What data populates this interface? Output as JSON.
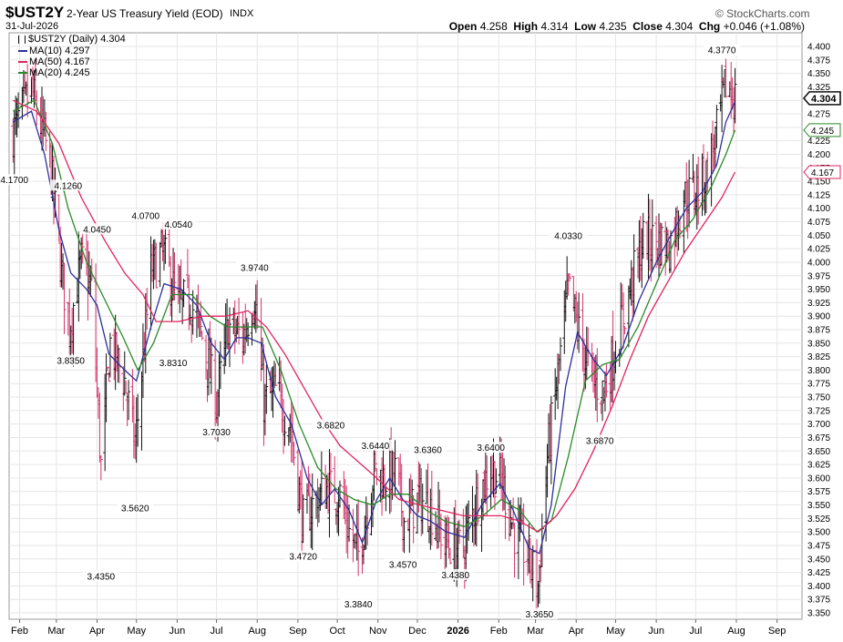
{
  "header": {
    "symbol": "$UST2Y",
    "description": "2-Year US Treasury Yield (EOD)",
    "exchange": "INDX",
    "date": "31-Jul-2026",
    "source": "© StockCharts.com",
    "open_label": "Open",
    "open": "4.258",
    "high_label": "High",
    "high": "4.314",
    "low_label": "Low",
    "low": "4.235",
    "close_label": "Close",
    "close": "4.304",
    "chg_label": "Chg",
    "chg": "+0.046 (+1.08%)"
  },
  "legend": {
    "price": "$UST2Y (Daily) 4.304",
    "ma10": "MA(10) 4.297",
    "ma50": "MA(50) 4.167",
    "ma20": "MA(20) 4.245"
  },
  "colors": {
    "up_bar": "#111111",
    "down_bar": "#d6336c",
    "ma10": "#2b2f9b",
    "ma50": "#e0245e",
    "ma20": "#2a8a2a",
    "grid": "#e6e6e6",
    "highlight": "#111111"
  },
  "chart_data": {
    "type": "line",
    "style": "ohlc-bars",
    "grid": true,
    "ylim": [
      3.35,
      4.4
    ],
    "y_ticks": [
      "3.350",
      "3.375",
      "3.400",
      "3.425",
      "3.450",
      "3.475",
      "3.500",
      "3.525",
      "3.550",
      "3.575",
      "3.600",
      "3.625",
      "3.650",
      "3.675",
      "3.700",
      "3.725",
      "3.750",
      "3.775",
      "3.800",
      "3.825",
      "3.850",
      "3.875",
      "3.900",
      "3.925",
      "3.950",
      "3.975",
      "4.000",
      "4.025",
      "4.050",
      "4.075",
      "4.100",
      "4.125",
      "4.150",
      "4.175",
      "4.200",
      "4.225",
      "4.250",
      "4.275",
      "4.300",
      "4.325",
      "4.350",
      "4.375",
      "4.400"
    ],
    "x_ticks": [
      {
        "label": "Feb",
        "date": "2025-02-01"
      },
      {
        "label": "Mar",
        "date": "2025-03-01"
      },
      {
        "label": "Apr",
        "date": "2025-04-01"
      },
      {
        "label": "May",
        "date": "2025-05-01"
      },
      {
        "label": "Jun",
        "date": "2025-06-01"
      },
      {
        "label": "Jul",
        "date": "2025-07-01"
      },
      {
        "label": "Aug",
        "date": "2025-08-01"
      },
      {
        "label": "Sep",
        "date": "2025-09-01"
      },
      {
        "label": "Oct",
        "date": "2025-10-01"
      },
      {
        "label": "Nov",
        "date": "2025-11-01"
      },
      {
        "label": "Dec",
        "date": "2025-12-01"
      },
      {
        "label": "2026",
        "date": "2026-01-01",
        "bold": true
      },
      {
        "label": "Feb",
        "date": "2026-02-01"
      },
      {
        "label": "Mar",
        "date": "2026-03-01"
      },
      {
        "label": "Apr",
        "date": "2026-04-01"
      },
      {
        "label": "May",
        "date": "2026-05-01"
      },
      {
        "label": "Jun",
        "date": "2026-06-01"
      },
      {
        "label": "Jul",
        "date": "2026-07-01"
      },
      {
        "label": "Aug",
        "date": "2026-08-01"
      },
      {
        "label": "Sep",
        "date": "2026-09-01"
      }
    ],
    "x_range": [
      "2025-01-24",
      "2026-09-20"
    ],
    "last_date": "2026-07-31",
    "series": [
      {
        "name": "$UST2Y (Daily)",
        "points": [
          [
            "2025-01-27",
            4.24
          ],
          [
            "2025-02-10",
            4.32
          ],
          [
            "2025-02-24",
            4.19
          ],
          [
            "2025-03-05",
            3.98
          ],
          [
            "2025-03-11",
            3.88
          ],
          [
            "2025-03-20",
            4.0
          ],
          [
            "2025-03-28",
            3.95
          ],
          [
            "2025-04-04",
            3.62
          ],
          [
            "2025-04-11",
            3.85
          ],
          [
            "2025-04-22",
            3.78
          ],
          [
            "2025-04-30",
            3.66
          ],
          [
            "2025-05-12",
            3.98
          ],
          [
            "2025-05-21",
            4.02
          ],
          [
            "2025-06-02",
            3.92
          ],
          [
            "2025-06-11",
            3.93
          ],
          [
            "2025-06-20",
            3.86
          ],
          [
            "2025-07-01",
            3.74
          ],
          [
            "2025-07-10",
            3.88
          ],
          [
            "2025-07-21",
            3.86
          ],
          [
            "2025-07-30",
            3.94
          ],
          [
            "2025-08-06",
            3.74
          ],
          [
            "2025-08-15",
            3.76
          ],
          [
            "2025-08-26",
            3.7
          ],
          [
            "2025-09-05",
            3.52
          ],
          [
            "2025-09-12",
            3.55
          ],
          [
            "2025-09-23",
            3.58
          ],
          [
            "2025-10-03",
            3.57
          ],
          [
            "2025-10-10",
            3.5
          ],
          [
            "2025-10-17",
            3.46
          ],
          [
            "2025-10-29",
            3.61
          ],
          [
            "2025-11-05",
            3.6
          ],
          [
            "2025-11-14",
            3.61
          ],
          [
            "2025-11-21",
            3.52
          ],
          [
            "2025-12-02",
            3.56
          ],
          [
            "2025-12-10",
            3.55
          ],
          [
            "2025-12-22",
            3.48
          ],
          [
            "2026-01-05",
            3.47
          ],
          [
            "2026-01-15",
            3.56
          ],
          [
            "2026-01-26",
            3.62
          ],
          [
            "2026-02-04",
            3.59
          ],
          [
            "2026-02-13",
            3.5
          ],
          [
            "2026-02-24",
            3.45
          ],
          [
            "2026-03-03",
            3.4
          ],
          [
            "2026-03-10",
            3.64
          ],
          [
            "2026-03-17",
            3.77
          ],
          [
            "2026-03-26",
            3.95
          ],
          [
            "2026-04-06",
            3.84
          ],
          [
            "2026-04-14",
            3.78
          ],
          [
            "2026-04-22",
            3.76
          ],
          [
            "2026-05-04",
            3.87
          ],
          [
            "2026-05-13",
            3.96
          ],
          [
            "2026-05-22",
            4.04
          ],
          [
            "2026-06-01",
            4.04
          ],
          [
            "2026-06-11",
            4.03
          ],
          [
            "2026-06-22",
            4.12
          ],
          [
            "2026-06-30",
            4.13
          ],
          [
            "2026-07-09",
            4.16
          ],
          [
            "2026-07-17",
            4.24
          ],
          [
            "2026-07-24",
            4.33
          ],
          [
            "2026-07-31",
            4.304
          ]
        ]
      },
      {
        "name": "MA(10)",
        "points": [
          [
            "2025-01-27",
            4.26
          ],
          [
            "2025-02-10",
            4.28
          ],
          [
            "2025-02-20",
            4.2
          ],
          [
            "2025-03-03",
            4.06
          ],
          [
            "2025-03-12",
            3.98
          ],
          [
            "2025-03-24",
            3.95
          ],
          [
            "2025-04-01",
            3.92
          ],
          [
            "2025-04-10",
            3.83
          ],
          [
            "2025-04-22",
            3.8
          ],
          [
            "2025-05-01",
            3.78
          ],
          [
            "2025-05-12",
            3.88
          ],
          [
            "2025-05-22",
            3.96
          ],
          [
            "2025-06-04",
            3.95
          ],
          [
            "2025-06-16",
            3.92
          ],
          [
            "2025-06-27",
            3.85
          ],
          [
            "2025-07-07",
            3.82
          ],
          [
            "2025-07-16",
            3.86
          ],
          [
            "2025-07-25",
            3.86
          ],
          [
            "2025-08-04",
            3.85
          ],
          [
            "2025-08-15",
            3.75
          ],
          [
            "2025-08-27",
            3.7
          ],
          [
            "2025-09-08",
            3.6
          ],
          [
            "2025-09-19",
            3.55
          ],
          [
            "2025-09-29",
            3.58
          ],
          [
            "2025-10-10",
            3.54
          ],
          [
            "2025-10-20",
            3.48
          ],
          [
            "2025-10-31",
            3.56
          ],
          [
            "2025-11-10",
            3.6
          ],
          [
            "2025-11-20",
            3.56
          ],
          [
            "2025-12-01",
            3.53
          ],
          [
            "2025-12-11",
            3.52
          ],
          [
            "2025-12-23",
            3.5
          ],
          [
            "2026-01-06",
            3.49
          ],
          [
            "2026-01-19",
            3.55
          ],
          [
            "2026-02-02",
            3.59
          ],
          [
            "2026-02-12",
            3.54
          ],
          [
            "2026-02-24",
            3.47
          ],
          [
            "2026-03-04",
            3.46
          ],
          [
            "2026-03-13",
            3.55
          ],
          [
            "2026-03-24",
            3.77
          ],
          [
            "2026-04-02",
            3.87
          ],
          [
            "2026-04-14",
            3.82
          ],
          [
            "2026-04-24",
            3.79
          ],
          [
            "2026-05-06",
            3.84
          ],
          [
            "2026-05-19",
            3.93
          ],
          [
            "2026-06-01",
            4.0
          ],
          [
            "2026-06-12",
            4.05
          ],
          [
            "2026-06-24",
            4.1
          ],
          [
            "2026-07-06",
            4.13
          ],
          [
            "2026-07-17",
            4.18
          ],
          [
            "2026-07-24",
            4.26
          ],
          [
            "2026-07-31",
            4.297
          ]
        ]
      },
      {
        "name": "MA(20)",
        "points": [
          [
            "2025-01-27",
            4.28
          ],
          [
            "2025-02-12",
            4.3
          ],
          [
            "2025-02-26",
            4.22
          ],
          [
            "2025-03-10",
            4.1
          ],
          [
            "2025-03-24",
            4.0
          ],
          [
            "2025-04-07",
            3.93
          ],
          [
            "2025-04-21",
            3.86
          ],
          [
            "2025-05-02",
            3.8
          ],
          [
            "2025-05-14",
            3.85
          ],
          [
            "2025-05-28",
            3.94
          ],
          [
            "2025-06-12",
            3.94
          ],
          [
            "2025-06-26",
            3.9
          ],
          [
            "2025-07-09",
            3.88
          ],
          [
            "2025-07-22",
            3.88
          ],
          [
            "2025-08-05",
            3.88
          ],
          [
            "2025-08-19",
            3.8
          ],
          [
            "2025-09-02",
            3.7
          ],
          [
            "2025-09-16",
            3.62
          ],
          [
            "2025-09-30",
            3.58
          ],
          [
            "2025-10-14",
            3.56
          ],
          [
            "2025-10-28",
            3.55
          ],
          [
            "2025-11-10",
            3.57
          ],
          [
            "2025-11-24",
            3.57
          ],
          [
            "2025-12-08",
            3.54
          ],
          [
            "2025-12-22",
            3.52
          ],
          [
            "2026-01-06",
            3.51
          ],
          [
            "2026-01-20",
            3.53
          ],
          [
            "2026-02-03",
            3.56
          ],
          [
            "2026-02-17",
            3.54
          ],
          [
            "2026-03-02",
            3.5
          ],
          [
            "2026-03-13",
            3.52
          ],
          [
            "2026-03-26",
            3.64
          ],
          [
            "2026-04-08",
            3.78
          ],
          [
            "2026-04-21",
            3.81
          ],
          [
            "2026-05-04",
            3.82
          ],
          [
            "2026-05-18",
            3.88
          ],
          [
            "2026-06-01",
            3.96
          ],
          [
            "2026-06-15",
            4.04
          ],
          [
            "2026-06-29",
            4.08
          ],
          [
            "2026-07-13",
            4.14
          ],
          [
            "2026-07-24",
            4.2
          ],
          [
            "2026-07-31",
            4.245
          ]
        ]
      },
      {
        "name": "MA(50)",
        "points": [
          [
            "2025-01-27",
            4.3
          ],
          [
            "2025-02-14",
            4.28
          ],
          [
            "2025-03-03",
            4.22
          ],
          [
            "2025-03-20",
            4.12
          ],
          [
            "2025-04-07",
            4.04
          ],
          [
            "2025-04-22",
            3.98
          ],
          [
            "2025-05-06",
            3.94
          ],
          [
            "2025-05-16",
            3.89
          ],
          [
            "2025-06-02",
            3.89
          ],
          [
            "2025-06-20",
            3.9
          ],
          [
            "2025-07-08",
            3.9
          ],
          [
            "2025-07-25",
            3.91
          ],
          [
            "2025-08-08",
            3.88
          ],
          [
            "2025-08-22",
            3.83
          ],
          [
            "2025-09-05",
            3.77
          ],
          [
            "2025-09-19",
            3.71
          ],
          [
            "2025-10-03",
            3.66
          ],
          [
            "2025-10-17",
            3.63
          ],
          [
            "2025-10-31",
            3.6
          ],
          [
            "2025-11-17",
            3.56
          ],
          [
            "2025-12-03",
            3.55
          ],
          [
            "2025-12-19",
            3.54
          ],
          [
            "2026-01-05",
            3.53
          ],
          [
            "2026-01-20",
            3.53
          ],
          [
            "2026-02-03",
            3.53
          ],
          [
            "2026-02-17",
            3.52
          ],
          [
            "2026-03-03",
            3.5
          ],
          [
            "2026-03-17",
            3.53
          ],
          [
            "2026-03-31",
            3.58
          ],
          [
            "2026-04-14",
            3.65
          ],
          [
            "2026-04-28",
            3.73
          ],
          [
            "2026-05-12",
            3.82
          ],
          [
            "2026-05-26",
            3.9
          ],
          [
            "2026-06-09",
            3.96
          ],
          [
            "2026-06-23",
            4.02
          ],
          [
            "2026-07-07",
            4.07
          ],
          [
            "2026-07-21",
            4.12
          ],
          [
            "2026-07-31",
            4.167
          ]
        ]
      }
    ],
    "annotations": [
      {
        "date": "2025-01-28",
        "value": 4.17,
        "text": "4.1700",
        "pos": "below"
      },
      {
        "date": "2025-03-10",
        "value": 4.126,
        "text": "4.1260",
        "pos": "above"
      },
      {
        "date": "2025-03-12",
        "value": 3.835,
        "text": "3.8350",
        "pos": "below"
      },
      {
        "date": "2025-04-01",
        "value": 4.045,
        "text": "4.0450",
        "pos": "above"
      },
      {
        "date": "2025-04-04",
        "value": 3.435,
        "text": "3.4350",
        "pos": "below"
      },
      {
        "date": "2025-04-30",
        "value": 3.562,
        "text": "3.5620",
        "pos": "below"
      },
      {
        "date": "2025-05-08",
        "value": 4.07,
        "text": "4.0700",
        "pos": "above"
      },
      {
        "date": "2025-06-02",
        "value": 4.054,
        "text": "4.0540",
        "pos": "above"
      },
      {
        "date": "2025-05-29",
        "value": 3.831,
        "text": "3.8310",
        "pos": "below"
      },
      {
        "date": "2025-07-01",
        "value": 3.703,
        "text": "3.7030",
        "pos": "below"
      },
      {
        "date": "2025-07-30",
        "value": 3.974,
        "text": "3.9740",
        "pos": "above"
      },
      {
        "date": "2025-09-05",
        "value": 3.472,
        "text": "3.4720",
        "pos": "below"
      },
      {
        "date": "2025-09-26",
        "value": 3.682,
        "text": "3.6820",
        "pos": "above"
      },
      {
        "date": "2025-10-17",
        "value": 3.384,
        "text": "3.3840",
        "pos": "below"
      },
      {
        "date": "2025-10-30",
        "value": 3.644,
        "text": "3.6440",
        "pos": "above"
      },
      {
        "date": "2025-11-20",
        "value": 3.457,
        "text": "3.4570",
        "pos": "below"
      },
      {
        "date": "2025-12-09",
        "value": 3.636,
        "text": "3.6360",
        "pos": "above"
      },
      {
        "date": "2025-12-30",
        "value": 3.438,
        "text": "3.4380",
        "pos": "below"
      },
      {
        "date": "2026-01-26",
        "value": 3.64,
        "text": "3.6400",
        "pos": "above"
      },
      {
        "date": "2026-03-04",
        "value": 3.365,
        "text": "3.3650",
        "pos": "below"
      },
      {
        "date": "2026-03-26",
        "value": 4.033,
        "text": "4.0330",
        "pos": "above"
      },
      {
        "date": "2026-04-19",
        "value": 3.687,
        "text": "3.6870",
        "pos": "below"
      },
      {
        "date": "2026-07-21",
        "value": 4.377,
        "text": "4.3770",
        "pos": "above"
      }
    ],
    "markers": [
      {
        "value": 4.304,
        "text": "4.304",
        "style": "bold-black"
      },
      {
        "value": 4.245,
        "text": "4.245",
        "style": "green"
      },
      {
        "value": 4.167,
        "text": "4.167",
        "style": "red"
      }
    ]
  }
}
